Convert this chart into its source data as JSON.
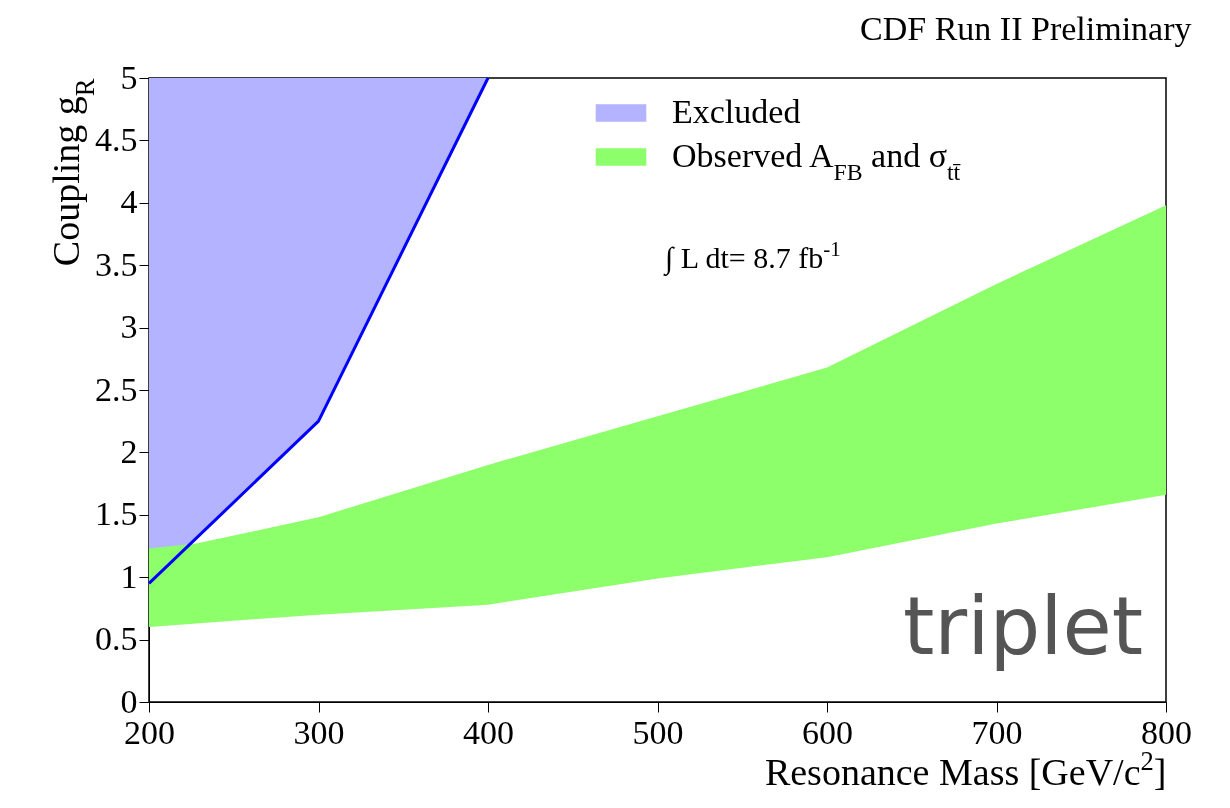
{
  "chart_data": {
    "type": "area",
    "title": "CDF Run II Preliminary",
    "xlabel": "Resonance Mass [GeV/c$^{2}$]",
    "ylabel": "Coupling g$_{R}$",
    "annotations": [
      "∫ L dt= 8.7 fb$^{-1}$",
      "triplet"
    ],
    "series": [
      {
        "name": "Excluded",
        "color": "#b3b3ff",
        "x": [
          200,
          300,
          400
        ],
        "values": [
          null,
          null,
          null
        ],
        "lower": [
          0.95,
          2.25,
          5
        ],
        "upper": [
          5,
          5,
          5
        ]
      },
      {
        "name": "Observed A$_{FB}$ and σ$_{tt̄}$",
        "color": "#8cff6a",
        "x": [
          200,
          228,
          300,
          400,
          500,
          600,
          700,
          800
        ],
        "values": [
          null,
          null,
          null,
          null,
          null,
          null,
          null,
          null
        ],
        "lower": [
          0.6,
          0.63,
          0.7,
          0.78,
          0.99,
          1.16,
          1.43,
          1.66
        ],
        "upper": [
          1.23,
          1.27,
          1.48,
          1.9,
          2.29,
          2.68,
          3.35,
          3.98
        ]
      },
      {
        "type": "line",
        "color": "#0000ff",
        "line_style": "solid",
        "x": [
          200,
          300,
          400
        ],
        "values": [
          0.95,
          2.25,
          5
        ]
      }
    ],
    "xlim": [
      200,
      800
    ],
    "xticks": [
      200,
      300,
      400,
      500,
      600,
      700,
      800
    ],
    "ylim": [
      0,
      5
    ],
    "yticks": [
      0,
      0.5,
      1,
      1.5,
      2,
      2.5,
      3,
      3.5,
      4,
      4.5,
      5
    ],
    "grid": false,
    "legend": "top right"
  }
}
